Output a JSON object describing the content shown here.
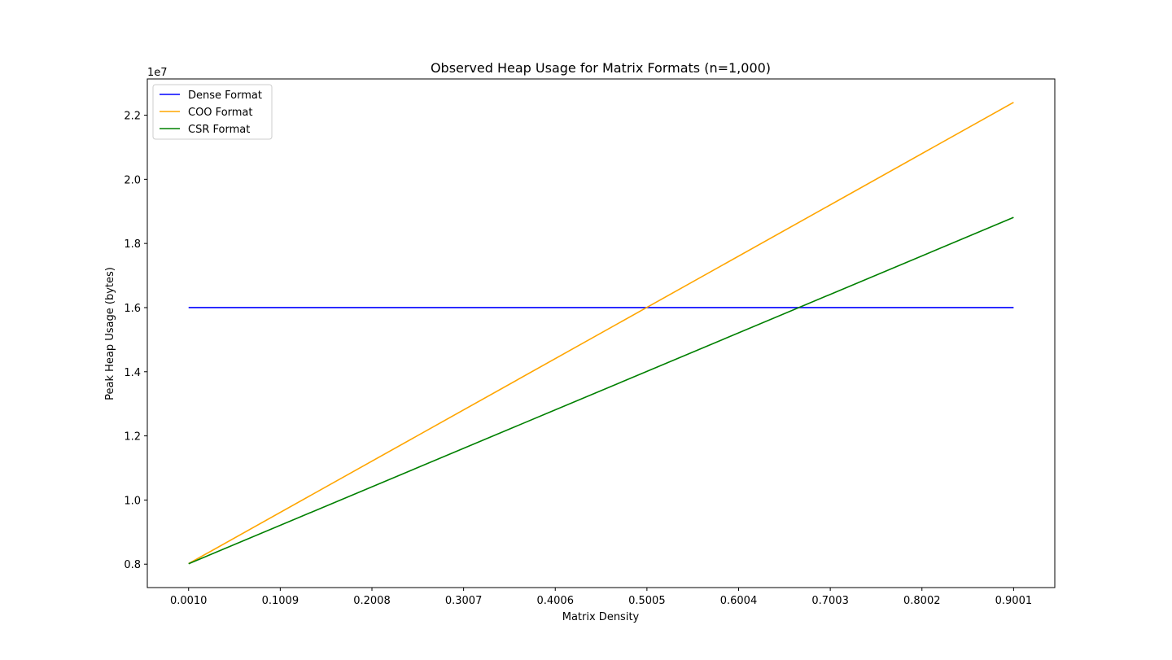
{
  "chart_data": {
    "type": "line",
    "title": "Observed Heap Usage for Matrix Formats (n=1,000)",
    "xlabel": "Matrix Density",
    "ylabel": "Peak Heap Usage (bytes)",
    "y_offset_label": "1e7",
    "x_ticks": [
      0.001,
      0.1009,
      0.2008,
      0.3007,
      0.4006,
      0.5005,
      0.6004,
      0.7003,
      0.8002,
      0.9001
    ],
    "x_tick_labels": [
      "0.0010",
      "0.1009",
      "0.2008",
      "0.3007",
      "0.4006",
      "0.5005",
      "0.6004",
      "0.7003",
      "0.8002",
      "0.9001"
    ],
    "y_ticks": [
      8000000,
      10000000,
      12000000,
      14000000,
      16000000,
      18000000,
      20000000,
      22000000
    ],
    "y_tick_labels": [
      "0.8",
      "1.0",
      "1.2",
      "1.4",
      "1.6",
      "1.8",
      "2.0",
      "2.2"
    ],
    "xlim": [
      -0.044,
      0.945
    ],
    "ylim": [
      7270000,
      23130000
    ],
    "x": [
      0.001,
      0.9001
    ],
    "series": [
      {
        "name": "Dense Format",
        "color": "#0000ff",
        "values": [
          16000000,
          16000000
        ]
      },
      {
        "name": "COO Format",
        "color": "#ffa500",
        "values": [
          8016000,
          22400000
        ]
      },
      {
        "name": "CSR Format",
        "color": "#008000",
        "values": [
          8012000,
          18812000
        ]
      }
    ],
    "legend_position": "upper-left",
    "grid": false
  }
}
